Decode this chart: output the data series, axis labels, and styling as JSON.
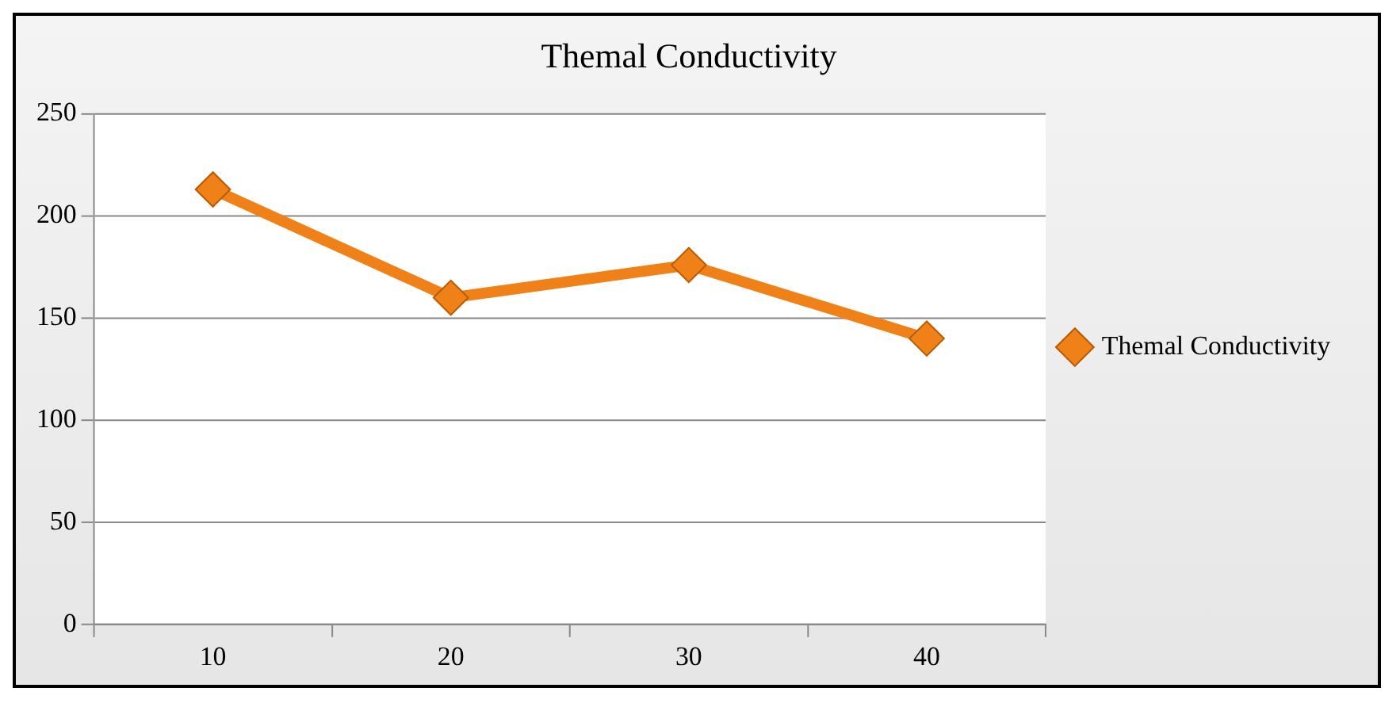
{
  "chart_data": {
    "type": "line",
    "title": "Themal Conductivity",
    "categories": [
      "10",
      "20",
      "30",
      "40"
    ],
    "series": [
      {
        "name": "Themal Conductivity",
        "color": "#f08018",
        "values": [
          213,
          160,
          176,
          140
        ]
      }
    ],
    "ylim": [
      0,
      250
    ],
    "yticks": [
      0,
      50,
      100,
      150,
      200,
      250
    ],
    "grid": "y",
    "legend": "right",
    "marker": "diamond",
    "line_style": "solid"
  }
}
